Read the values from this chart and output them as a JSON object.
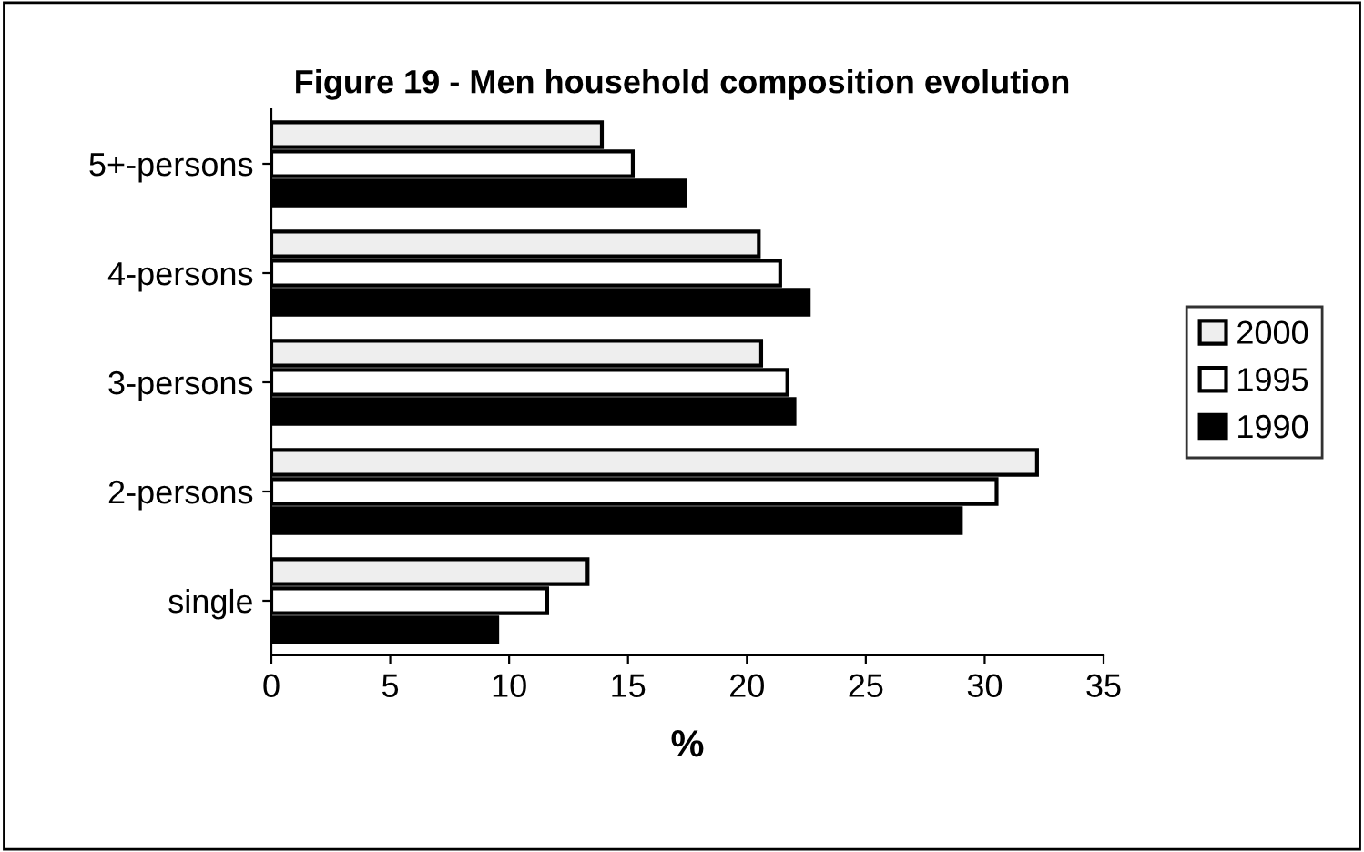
{
  "chart_data": {
    "type": "bar",
    "orientation": "horizontal",
    "title": "Figure 19 - Men household composition evolution",
    "xlabel": "%",
    "categories": [
      "5+-persons",
      "4-persons",
      "3-persons",
      "2-persons",
      "single"
    ],
    "series": [
      {
        "name": "2000",
        "color": "#eeeeee",
        "values": [
          13.9,
          20.5,
          20.6,
          32.2,
          13.3
        ]
      },
      {
        "name": "1995",
        "color": "#ffffff",
        "values": [
          15.2,
          21.4,
          21.7,
          30.5,
          11.6
        ]
      },
      {
        "name": "1990",
        "color": "#000000",
        "values": [
          17.4,
          22.6,
          22.0,
          29.0,
          9.5
        ]
      }
    ],
    "xlim": [
      0,
      35
    ],
    "xticks": [
      0,
      5,
      10,
      15,
      20,
      25,
      30,
      35
    ],
    "grid": false,
    "legend": "right"
  }
}
